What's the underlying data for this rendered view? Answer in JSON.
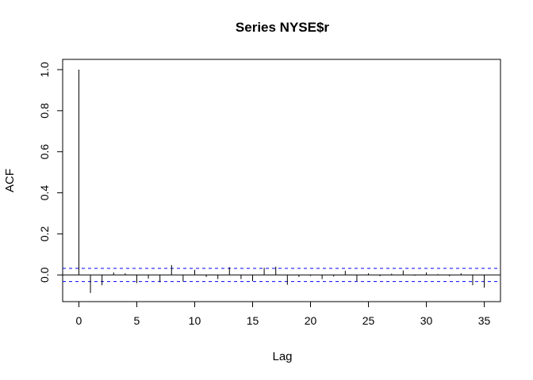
{
  "chart_data": {
    "type": "bar",
    "title": "Series  NYSE$r",
    "xlabel": "Lag",
    "ylabel": "ACF",
    "xlim": [
      -1.4,
      36.4
    ],
    "ylim": [
      -0.13,
      1.05
    ],
    "x_ticks": [
      0,
      5,
      10,
      15,
      20,
      25,
      30,
      35
    ],
    "y_ticks": [
      0.0,
      0.2,
      0.4,
      0.6,
      0.8,
      1.0
    ],
    "y_tick_labels": [
      "0.0",
      "0.2",
      "0.4",
      "0.6",
      "0.8",
      "1.0"
    ],
    "lags": [
      0,
      1,
      2,
      3,
      4,
      5,
      6,
      7,
      8,
      9,
      10,
      11,
      12,
      13,
      14,
      15,
      16,
      17,
      18,
      19,
      20,
      21,
      22,
      23,
      24,
      25,
      26,
      27,
      28,
      29,
      30,
      31,
      32,
      33,
      34,
      35
    ],
    "acf": [
      1.0,
      -0.088,
      -0.05,
      0.012,
      0.008,
      -0.04,
      -0.018,
      -0.035,
      0.048,
      -0.032,
      0.025,
      -0.01,
      -0.02,
      0.038,
      -0.02,
      -0.03,
      0.035,
      0.04,
      -0.048,
      -0.01,
      -0.005,
      -0.02,
      -0.008,
      0.02,
      -0.03,
      0.008,
      -0.006,
      0.006,
      0.022,
      -0.004,
      0.012,
      0.004,
      -0.006,
      0.008,
      -0.05,
      -0.062
    ],
    "confidence_band": 0.032,
    "colors": {
      "bars": "#000000",
      "confidence": "#0000ff",
      "axes": "#000000"
    },
    "grid": false
  }
}
